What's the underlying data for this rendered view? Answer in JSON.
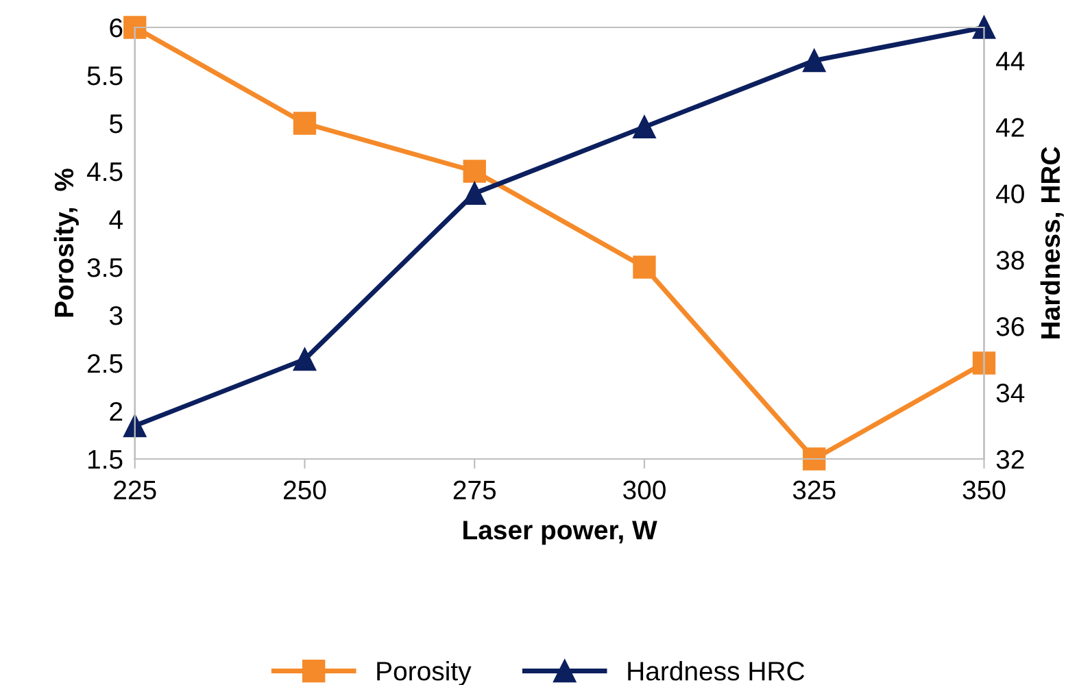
{
  "chart_data": {
    "type": "line",
    "xlabel": "Laser power, W",
    "ylabel": "Porosity,  %",
    "y2label": "Hardness, HRC",
    "x": [
      225,
      250,
      275,
      300,
      325,
      350
    ],
    "series": [
      {
        "name": "Porosity",
        "color": "#f58a2a",
        "marker": "square",
        "values": [
          6,
          5,
          4.5,
          3.5,
          1.5,
          2.5
        ]
      },
      {
        "name": "Hardness HRC",
        "color": "#0c1f5e",
        "marker": "triangle",
        "axis": "y2",
        "values": [
          33,
          35,
          40,
          42,
          44,
          45
        ]
      }
    ],
    "xlim": [
      225,
      350
    ],
    "xticks": [
      225,
      250,
      275,
      300,
      325,
      350
    ],
    "ylim": [
      1.5,
      6
    ],
    "yticks": [
      1.5,
      2,
      2.5,
      3,
      3.5,
      4,
      4.5,
      5,
      5.5,
      6
    ],
    "y2lim": [
      32,
      45
    ],
    "y2ticks": [
      32,
      34,
      36,
      38,
      40,
      42,
      44
    ],
    "grid": false,
    "legend": "bottom",
    "line_style": "solid"
  }
}
